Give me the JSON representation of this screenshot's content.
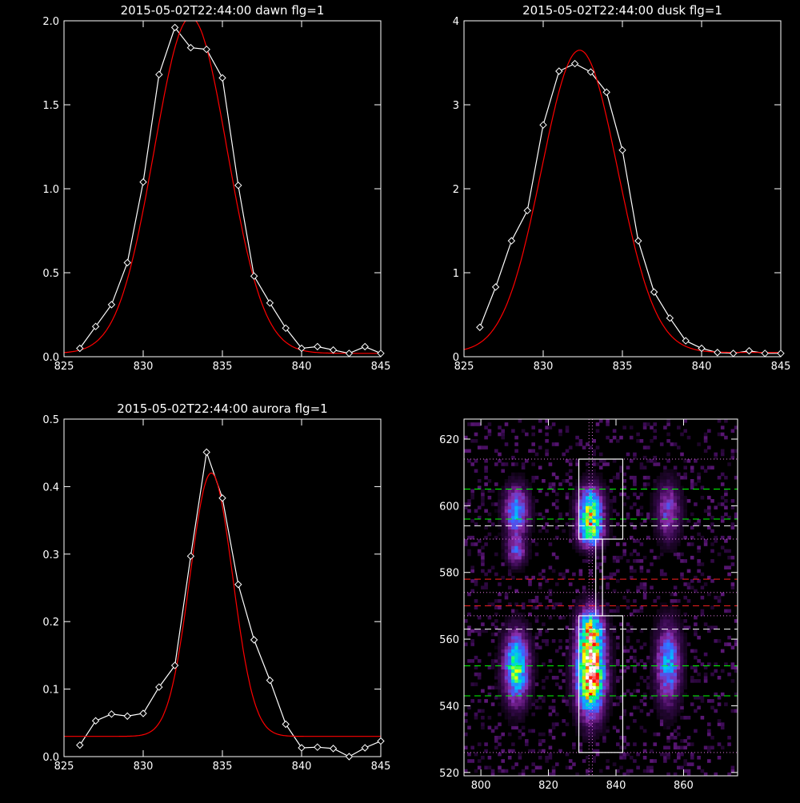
{
  "chart_data": [
    {
      "type": "line",
      "title": "2015-05-02T22:44:00 dawn flg=1",
      "xlim": [
        825,
        845
      ],
      "ylim": [
        0,
        2.0
      ],
      "xticks": [
        825,
        830,
        835,
        840,
        845
      ],
      "xtick_labels": [
        "825",
        "830",
        "835",
        "840",
        "845"
      ],
      "yticks": [
        0,
        0.5,
        1.0,
        1.5,
        2.0
      ],
      "ytick_labels": [
        "0.0",
        "0.5",
        "1.0",
        "1.5",
        "2.0"
      ],
      "series": [
        {
          "color": "#ffffff",
          "marker": "diamond",
          "x": [
            826,
            827,
            828,
            829,
            830,
            831,
            832,
            833,
            834,
            835,
            836,
            837,
            838,
            839,
            840,
            841,
            842,
            843,
            844,
            845
          ],
          "y": [
            0.05,
            0.18,
            0.31,
            0.56,
            1.04,
            1.68,
            1.96,
            1.84,
            1.83,
            1.66,
            1.02,
            0.48,
            0.32,
            0.17,
            0.05,
            0.06,
            0.04,
            0.02,
            0.06,
            0.02
          ]
        },
        {
          "color": "#ff0000",
          "model": "gaussian",
          "center": 833.0,
          "sigma": 2.3,
          "amplitude": 2.0,
          "baseline": 0.02
        }
      ]
    },
    {
      "type": "line",
      "title": "2015-05-02T22:44:00 dusk flg=1",
      "xlim": [
        825,
        845
      ],
      "ylim": [
        0,
        4
      ],
      "xticks": [
        825,
        830,
        835,
        840,
        845
      ],
      "xtick_labels": [
        "825",
        "830",
        "835",
        "840",
        "845"
      ],
      "yticks": [
        0,
        1,
        2,
        3,
        4
      ],
      "ytick_labels": [
        "0",
        "1",
        "2",
        "3",
        "4"
      ],
      "series": [
        {
          "color": "#ffffff",
          "marker": "diamond",
          "x": [
            826,
            827,
            828,
            829,
            830,
            831,
            832,
            833,
            834,
            835,
            836,
            837,
            838,
            839,
            840,
            841,
            842,
            843,
            844,
            845
          ],
          "y": [
            0.35,
            0.83,
            1.38,
            1.74,
            2.76,
            3.4,
            3.49,
            3.39,
            3.15,
            2.46,
            1.38,
            0.77,
            0.46,
            0.19,
            0.1,
            0.05,
            0.04,
            0.07,
            0.04,
            0.04
          ]
        },
        {
          "color": "#ff0000",
          "model": "gaussian",
          "center": 832.3,
          "sigma": 2.4,
          "amplitude": 3.6,
          "baseline": 0.05
        }
      ]
    },
    {
      "type": "line",
      "title": "2015-05-02T22:44:00 aurora flg=1",
      "xlim": [
        825,
        845
      ],
      "ylim": [
        0,
        0.5
      ],
      "xticks": [
        825,
        830,
        835,
        840,
        845
      ],
      "xtick_labels": [
        "825",
        "830",
        "835",
        "840",
        "845"
      ],
      "yticks": [
        0,
        0.1,
        0.2,
        0.3,
        0.4,
        0.5
      ],
      "ytick_labels": [
        "0.0",
        "0.1",
        "0.2",
        "0.3",
        "0.4",
        "0.5"
      ],
      "series": [
        {
          "color": "#ffffff",
          "marker": "diamond",
          "x": [
            826,
            827,
            828,
            829,
            830,
            831,
            832,
            833,
            834,
            835,
            836,
            837,
            838,
            839,
            840,
            841,
            842,
            843,
            844,
            845
          ],
          "y": [
            0.017,
            0.053,
            0.063,
            0.06,
            0.064,
            0.103,
            0.135,
            0.297,
            0.451,
            0.383,
            0.255,
            0.173,
            0.113,
            0.048,
            0.013,
            0.014,
            0.012,
            0.0,
            0.013,
            0.023
          ]
        },
        {
          "color": "#ff0000",
          "model": "gaussian",
          "center": 834.3,
          "sigma": 1.35,
          "amplitude": 0.39,
          "baseline": 0.03
        }
      ]
    },
    {
      "type": "heatmap",
      "title": "",
      "xlim": [
        795,
        876
      ],
      "ylim": [
        519,
        626
      ],
      "xticks": [
        800,
        820,
        840,
        860
      ],
      "xtick_labels": [
        "800",
        "820",
        "840",
        "860"
      ],
      "yticks": [
        520,
        540,
        560,
        580,
        600,
        620
      ],
      "ytick_labels": [
        "520",
        "540",
        "560",
        "580",
        "600",
        "620"
      ],
      "colormap": [
        "#000000",
        "#3a0a52",
        "#8a2aa8",
        "#4060ff",
        "#00c0ff",
        "#00ff80",
        "#ffff00",
        "#ff0000",
        "#ffffff"
      ],
      "blobs": [
        {
          "x": 810,
          "y": 551,
          "sx": 2.5,
          "sy": 7,
          "amp": 0.65
        },
        {
          "x": 810,
          "y": 598,
          "sx": 2.5,
          "sy": 5,
          "amp": 0.45
        },
        {
          "x": 810,
          "y": 586,
          "sx": 2,
          "sy": 3,
          "amp": 0.3
        },
        {
          "x": 832,
          "y": 549,
          "sx": 2.8,
          "sy": 8,
          "amp": 1.0
        },
        {
          "x": 832,
          "y": 562,
          "sx": 2.5,
          "sy": 5,
          "amp": 0.55
        },
        {
          "x": 832,
          "y": 598,
          "sx": 2.5,
          "sy": 5,
          "amp": 0.65
        },
        {
          "x": 832,
          "y": 591,
          "sx": 2.5,
          "sy": 3,
          "amp": 0.4
        },
        {
          "x": 855,
          "y": 552,
          "sx": 2.5,
          "sy": 8,
          "amp": 0.45
        },
        {
          "x": 855,
          "y": 598,
          "sx": 2.5,
          "sy": 6,
          "amp": 0.3
        }
      ],
      "boxes": [
        {
          "x0": 829,
          "x1": 842,
          "y0": 526,
          "y1": 567,
          "color": "#ffffff"
        },
        {
          "x0": 829,
          "x1": 842,
          "y0": 590,
          "y1": 614,
          "color": "#ffffff"
        },
        {
          "x0": 834,
          "x1": 836,
          "y0": 567,
          "y1": 590,
          "color": "#ffffff"
        }
      ],
      "hlines": [
        {
          "y": 614,
          "color": "#dd77dd",
          "style": "dotted"
        },
        {
          "y": 605,
          "color": "#00ff00",
          "style": "dashed"
        },
        {
          "y": 596,
          "color": "#00ff00",
          "style": "dashed"
        },
        {
          "y": 594,
          "color": "#ffffff",
          "style": "dashed"
        },
        {
          "y": 590,
          "color": "#dd77dd",
          "style": "dotted"
        },
        {
          "y": 578,
          "color": "#ff2020",
          "style": "dashed"
        },
        {
          "y": 574,
          "color": "#dd77dd",
          "style": "dotted"
        },
        {
          "y": 570,
          "color": "#ff2020",
          "style": "dashed"
        },
        {
          "y": 567,
          "color": "#dd77dd",
          "style": "dotted"
        },
        {
          "y": 563,
          "color": "#ffffff",
          "style": "dashed"
        },
        {
          "y": 552,
          "color": "#00ff00",
          "style": "dashed"
        },
        {
          "y": 543,
          "color": "#00ff00",
          "style": "dashed"
        },
        {
          "y": 526,
          "color": "#dd77dd",
          "style": "dotted"
        }
      ],
      "vlines": [
        {
          "x": 832,
          "color": "#dd77dd",
          "style": "dotted"
        },
        {
          "x": 833,
          "color": "#dd77dd",
          "style": "dotted"
        }
      ]
    }
  ]
}
